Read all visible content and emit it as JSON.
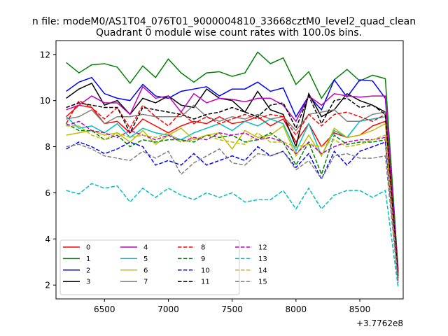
{
  "chart_data": {
    "type": "line",
    "suptitle": "n file: modeM0/AS1T04_076T01_9000004810_33668cztM0_level2_quad_clean",
    "title": "Quadrant 0 module wise count rates with 100.0s bins.",
    "xlabel": "",
    "ylabel": "",
    "x_offset_label": "+3.7762e8",
    "x_offset": 377620000,
    "xlim": [
      6120,
      8840
    ],
    "ylim": [
      1.4,
      12.6
    ],
    "xticks": [
      6500,
      7000,
      7500,
      8000,
      8500
    ],
    "yticks": [
      2,
      4,
      6,
      8,
      10,
      12
    ],
    "grid": false,
    "legend": {
      "placement": "lower-left",
      "columns": 4
    },
    "x": [
      6200,
      6300,
      6400,
      6500,
      6600,
      6700,
      6800,
      6900,
      7000,
      7100,
      7200,
      7300,
      7400,
      7500,
      7600,
      7700,
      7800,
      7900,
      8000,
      8100,
      8200,
      8300,
      8400,
      8500,
      8600,
      8700,
      8800
    ],
    "series": [
      {
        "name": "0",
        "color": "#ff0000",
        "dash": "solid",
        "values": [
          9.3,
          9.8,
          9.7,
          9.0,
          9.1,
          8.6,
          9.2,
          8.9,
          8.6,
          8.9,
          9.1,
          9.0,
          9.3,
          9.0,
          9.1,
          9.3,
          8.9,
          9.2,
          8.2,
          9.0,
          8.0,
          8.6,
          8.4,
          8.5,
          8.9,
          9.1,
          2.4
        ]
      },
      {
        "name": "1",
        "color": "#008000",
        "dash": "solid",
        "values": [
          11.65,
          11.2,
          11.55,
          11.6,
          11.45,
          10.75,
          11.5,
          11.0,
          11.8,
          11.2,
          10.8,
          11.2,
          11.25,
          11.05,
          11.2,
          12.1,
          11.6,
          11.85,
          10.7,
          11.25,
          10.1,
          10.9,
          11.35,
          10.85,
          11.1,
          10.95,
          2.7
        ]
      },
      {
        "name": "2",
        "color": "#0000ff",
        "dash": "solid",
        "values": [
          10.4,
          10.8,
          11.0,
          10.3,
          10.1,
          10.0,
          10.7,
          10.2,
          10.1,
          10.4,
          10.5,
          10.6,
          10.2,
          10.5,
          10.5,
          10.8,
          10.4,
          10.55,
          9.3,
          10.2,
          9.6,
          10.9,
          10.15,
          10.9,
          10.85,
          10.1,
          2.6
        ]
      },
      {
        "name": "3",
        "color": "#000000",
        "dash": "solid",
        "values": [
          10.1,
          10.5,
          10.75,
          9.8,
          10.0,
          9.4,
          10.1,
          9.9,
          10.2,
          9.8,
          9.7,
          10.5,
          10.1,
          10.0,
          9.5,
          10.4,
          9.6,
          9.4,
          8.0,
          10.3,
          9.3,
          9.6,
          10.3,
          10.0,
          9.8,
          9.5,
          2.5
        ]
      },
      {
        "name": "4",
        "color": "#bf00bf",
        "dash": "solid",
        "values": [
          9.6,
          9.8,
          10.2,
          9.9,
          9.9,
          9.4,
          10.6,
          10.1,
          10.2,
          9.5,
          10.3,
          9.9,
          10.1,
          10.05,
          9.95,
          10.1,
          10.1,
          9.8,
          9.1,
          10.2,
          9.8,
          10.3,
          10.2,
          10.15,
          10.2,
          10.2,
          2.5
        ]
      },
      {
        "name": "5",
        "color": "#00bfbf",
        "dash": "solid",
        "values": [
          9.3,
          8.8,
          8.9,
          8.6,
          9.0,
          8.4,
          8.8,
          8.6,
          8.5,
          8.3,
          8.6,
          8.8,
          9.0,
          8.7,
          9.1,
          8.9,
          9.2,
          9.0,
          7.8,
          9.0,
          7.6,
          8.7,
          8.4,
          9.1,
          9.2,
          9.3,
          2.3
        ]
      },
      {
        "name": "6",
        "color": "#bfbf00",
        "dash": "solid",
        "values": [
          8.5,
          8.6,
          8.7,
          8.5,
          8.6,
          8.2,
          8.7,
          8.1,
          8.5,
          8.8,
          8.3,
          8.5,
          8.6,
          7.9,
          8.7,
          8.4,
          8.5,
          8.9,
          7.6,
          8.5,
          7.6,
          8.8,
          8.4,
          8.5,
          8.7,
          9.0,
          2.3
        ]
      },
      {
        "name": "7",
        "color": "#808080",
        "dash": "solid",
        "values": [
          9.2,
          9.3,
          9.6,
          9.0,
          9.3,
          9.3,
          9.4,
          9.3,
          9.3,
          9.3,
          9.8,
          9.3,
          9.1,
          9.3,
          9.2,
          9.4,
          9.2,
          9.3,
          8.7,
          9.4,
          9.5,
          9.6,
          9.1,
          9.1,
          9.4,
          9.5,
          2.4
        ]
      },
      {
        "name": "8",
        "color": "#ff0000",
        "dash": "dashed",
        "values": [
          9.0,
          10.0,
          9.7,
          9.2,
          9.7,
          8.8,
          9.8,
          9.3,
          8.9,
          9.5,
          9.0,
          9.3,
          9.0,
          9.2,
          9.4,
          9.2,
          9.4,
          9.3,
          8.5,
          9.4,
          8.9,
          9.4,
          9.5,
          9.3,
          9.1,
          9.4,
          2.5
        ]
      },
      {
        "name": "9",
        "color": "#008000",
        "dash": "dashed",
        "values": [
          9.0,
          8.7,
          8.7,
          8.3,
          8.5,
          8.0,
          8.3,
          8.2,
          8.3,
          8.3,
          8.2,
          8.5,
          8.4,
          8.5,
          8.2,
          8.3,
          8.6,
          8.2,
          7.2,
          8.2,
          6.8,
          8.5,
          8.1,
          8.2,
          8.2,
          8.3,
          2.3
        ]
      },
      {
        "name": "10",
        "color": "#0000ff",
        "dash": "dashed",
        "values": [
          7.9,
          8.2,
          8.0,
          7.7,
          7.9,
          8.2,
          8.0,
          7.2,
          7.4,
          7.2,
          7.7,
          7.2,
          7.4,
          7.6,
          7.4,
          8.0,
          7.6,
          7.8,
          7.1,
          7.7,
          6.6,
          7.8,
          7.2,
          7.8,
          8.0,
          8.2,
          2.2
        ]
      },
      {
        "name": "11",
        "color": "#000000",
        "dash": "dashed",
        "values": [
          9.7,
          9.9,
          9.8,
          9.7,
          9.7,
          8.6,
          9.7,
          9.6,
          9.5,
          9.4,
          9.2,
          9.4,
          9.5,
          9.7,
          9.5,
          9.3,
          9.8,
          9.9,
          8.8,
          10.2,
          9.0,
          10.0,
          10.1,
          9.7,
          9.8,
          9.4,
          2.4
        ]
      },
      {
        "name": "12",
        "color": "#bf00bf",
        "dash": "dashed",
        "values": [
          8.9,
          9.1,
          8.7,
          8.6,
          8.4,
          8.7,
          8.5,
          8.3,
          8.5,
          8.2,
          8.4,
          8.3,
          8.6,
          8.5,
          8.6,
          8.3,
          8.4,
          8.2,
          7.7,
          8.2,
          7.7,
          8.0,
          8.2,
          8.3,
          8.3,
          8.4,
          2.2
        ]
      },
      {
        "name": "13",
        "color": "#00bfbf",
        "dash": "dashed",
        "values": [
          6.1,
          5.95,
          6.4,
          6.2,
          6.3,
          5.6,
          6.2,
          5.8,
          6.2,
          5.9,
          5.7,
          6.0,
          5.8,
          6.0,
          5.6,
          5.7,
          5.7,
          6.1,
          5.3,
          6.2,
          5.3,
          5.9,
          6.1,
          6.1,
          5.8,
          6.1,
          1.9
        ]
      },
      {
        "name": "14",
        "color": "#bfbf00",
        "dash": "dashed",
        "values": [
          8.9,
          8.9,
          8.5,
          8.3,
          8.6,
          8.4,
          8.5,
          8.4,
          8.6,
          8.2,
          8.3,
          8.5,
          8.3,
          8.2,
          8.1,
          8.6,
          8.2,
          8.2,
          8.0,
          8.1,
          8.0,
          8.3,
          8.0,
          8.1,
          8.3,
          8.5,
          2.1
        ]
      },
      {
        "name": "15",
        "color": "#808080",
        "dash": "dashed",
        "values": [
          8.0,
          8.1,
          7.9,
          7.6,
          7.5,
          7.4,
          7.8,
          7.5,
          7.8,
          6.8,
          7.3,
          7.6,
          7.9,
          7.3,
          7.2,
          7.7,
          7.6,
          7.8,
          7.0,
          7.4,
          6.6,
          7.6,
          7.7,
          7.5,
          7.5,
          7.6,
          2.1
        ]
      }
    ]
  }
}
